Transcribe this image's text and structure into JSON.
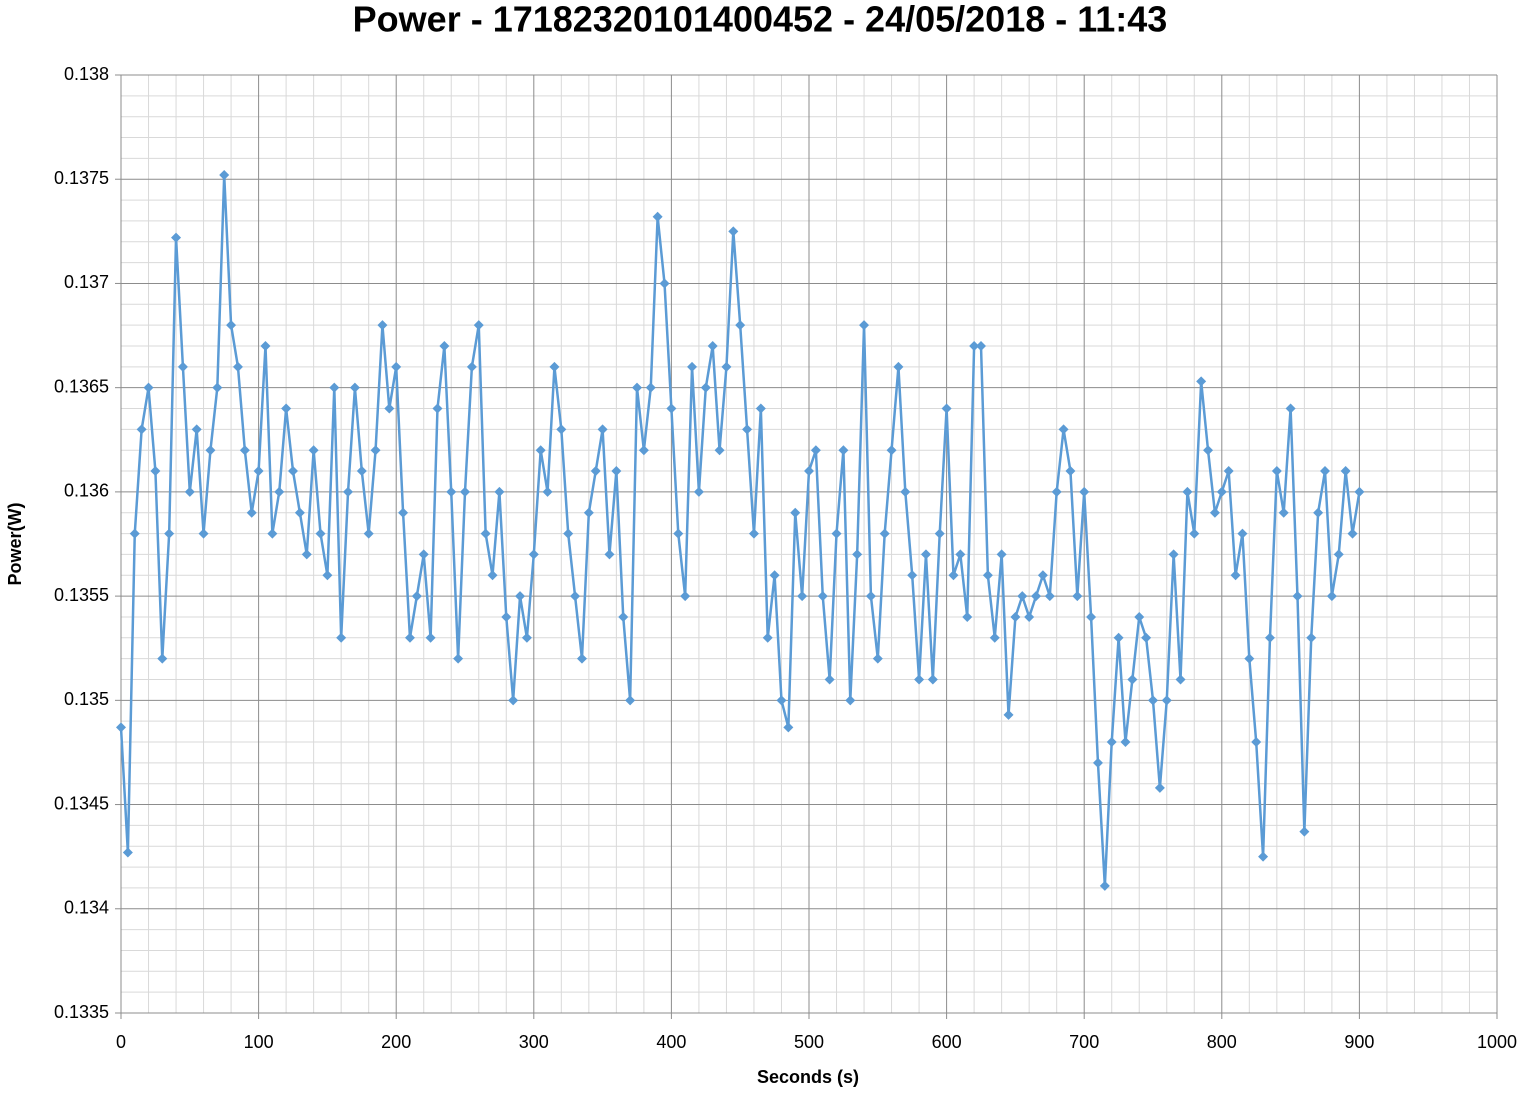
{
  "chart_data": {
    "type": "line",
    "title": "Power - 17182320101400452 - 24/05/2018 - 11:43",
    "x_label": "Seconds (s)",
    "y_label": "Power(W)",
    "color": "#5b9bd5",
    "marker": "diamond",
    "grid": true,
    "xlim": [
      0,
      1000
    ],
    "xticks": [
      0,
      100,
      200,
      300,
      400,
      500,
      600,
      700,
      800,
      900,
      1000
    ],
    "ylim": [
      0.1335,
      0.138
    ],
    "yticks": [
      0.1335,
      0.134,
      0.1345,
      0.135,
      0.1355,
      0.136,
      0.1365,
      0.137,
      0.1375,
      0.138
    ],
    "x": [
      0,
      5,
      10,
      15,
      20,
      25,
      30,
      35,
      40,
      45,
      50,
      55,
      60,
      65,
      70,
      75,
      80,
      85,
      90,
      95,
      100,
      105,
      110,
      115,
      120,
      125,
      130,
      135,
      140,
      145,
      150,
      155,
      160,
      165,
      170,
      175,
      180,
      185,
      190,
      195,
      200,
      205,
      210,
      215,
      220,
      225,
      230,
      235,
      240,
      245,
      250,
      255,
      260,
      265,
      270,
      275,
      280,
      285,
      290,
      295,
      300,
      305,
      310,
      315,
      320,
      325,
      330,
      335,
      340,
      345,
      350,
      355,
      360,
      365,
      370,
      375,
      380,
      385,
      390,
      395,
      400,
      405,
      410,
      415,
      420,
      425,
      430,
      435,
      440,
      445,
      450,
      455,
      460,
      465,
      470,
      475,
      480,
      485,
      490,
      495,
      500,
      505,
      510,
      515,
      520,
      525,
      530,
      535,
      540,
      545,
      550,
      555,
      560,
      565,
      570,
      575,
      580,
      585,
      590,
      595,
      600,
      605,
      610,
      615,
      620,
      625,
      630,
      635,
      640,
      645,
      650,
      655,
      660,
      665,
      670,
      675,
      680,
      685,
      690,
      695,
      700,
      705,
      710,
      715,
      720,
      725,
      730,
      735,
      740,
      745,
      750,
      755,
      760,
      765,
      770,
      775,
      780,
      785,
      790,
      795,
      800,
      805,
      810,
      815,
      820,
      825,
      830,
      835,
      840,
      845,
      850,
      855,
      860,
      865,
      870,
      875,
      880,
      885,
      890,
      895,
      900
    ],
    "values": [
      0.13487,
      0.13427,
      0.1358,
      0.1363,
      0.1365,
      0.1361,
      0.1352,
      0.1358,
      0.13722,
      0.1366,
      0.136,
      0.1363,
      0.1358,
      0.1362,
      0.1365,
      0.13752,
      0.1368,
      0.1366,
      0.1362,
      0.1359,
      0.1361,
      0.1367,
      0.1358,
      0.136,
      0.1364,
      0.1361,
      0.1359,
      0.1357,
      0.1362,
      0.1358,
      0.1356,
      0.1365,
      0.1353,
      0.136,
      0.1365,
      0.1361,
      0.1358,
      0.1362,
      0.1368,
      0.1364,
      0.1366,
      0.1359,
      0.1353,
      0.1355,
      0.1357,
      0.1353,
      0.1364,
      0.1367,
      0.136,
      0.1352,
      0.136,
      0.1366,
      0.1368,
      0.1358,
      0.1356,
      0.136,
      0.1354,
      0.135,
      0.1355,
      0.1353,
      0.1357,
      0.1362,
      0.136,
      0.1366,
      0.1363,
      0.1358,
      0.1355,
      0.1352,
      0.1359,
      0.1361,
      0.1363,
      0.1357,
      0.1361,
      0.1354,
      0.135,
      0.1365,
      0.1362,
      0.1365,
      0.13732,
      0.137,
      0.1364,
      0.1358,
      0.1355,
      0.1366,
      0.136,
      0.1365,
      0.1367,
      0.1362,
      0.1366,
      0.13725,
      0.1368,
      0.1363,
      0.1358,
      0.1364,
      0.1353,
      0.1356,
      0.135,
      0.13487,
      0.1359,
      0.1355,
      0.1361,
      0.1362,
      0.1355,
      0.1351,
      0.1358,
      0.1362,
      0.135,
      0.1357,
      0.1368,
      0.1355,
      0.1352,
      0.1358,
      0.1362,
      0.1366,
      0.136,
      0.1356,
      0.1351,
      0.1357,
      0.1351,
      0.1358,
      0.1364,
      0.1356,
      0.1357,
      0.1354,
      0.1367,
      0.1367,
      0.1356,
      0.1353,
      0.1357,
      0.13493,
      0.1354,
      0.1355,
      0.1354,
      0.1355,
      0.1356,
      0.1355,
      0.136,
      0.1363,
      0.1361,
      0.1355,
      0.136,
      0.1354,
      0.1347,
      0.13411,
      0.1348,
      0.1353,
      0.1348,
      0.1351,
      0.1354,
      0.1353,
      0.135,
      0.13458,
      0.135,
      0.1357,
      0.1351,
      0.136,
      0.1358,
      0.13653,
      0.1362,
      0.1359,
      0.136,
      0.1361,
      0.1356,
      0.1358,
      0.1352,
      0.1348,
      0.13425,
      0.1353,
      0.1361,
      0.1359,
      0.1364,
      0.1355,
      0.13437,
      0.1353,
      0.1359,
      0.1361,
      0.1355,
      0.1357,
      0.1361,
      0.1358,
      0.136
    ]
  }
}
